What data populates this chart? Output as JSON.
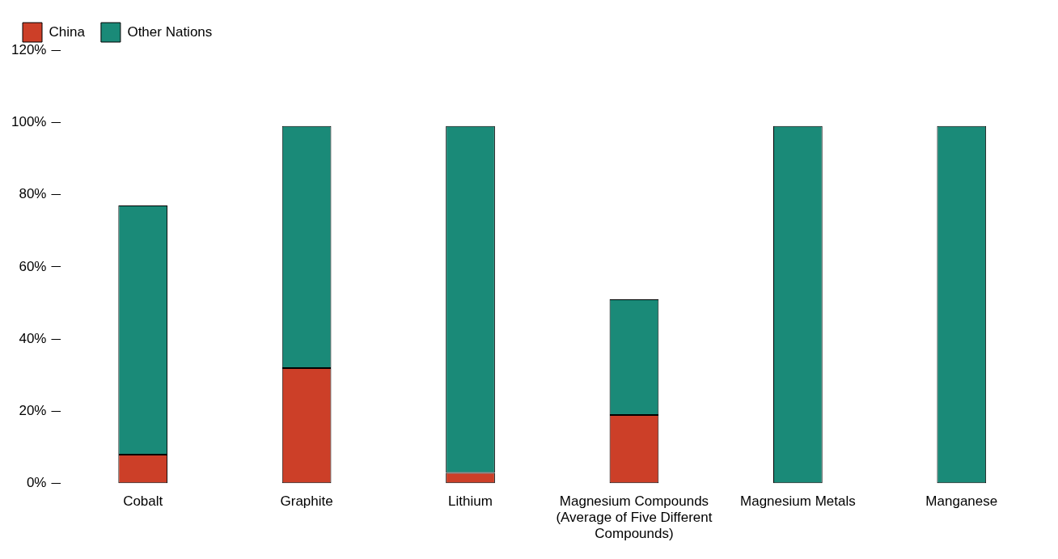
{
  "chart_data": {
    "type": "bar",
    "stacked": true,
    "categories": [
      "Cobalt",
      "Graphite",
      "Lithium",
      "Magnesium Compounds (Average of Five Different Compounds)",
      "Magnesium Metals",
      "Manganese"
    ],
    "series": [
      {
        "name": "China",
        "color": "#cc3f28",
        "values": [
          8,
          32,
          3,
          19,
          0,
          0
        ]
      },
      {
        "name": "Other Nations",
        "color": "#1a8a78",
        "values": [
          69,
          67,
          96,
          32,
          99,
          99
        ]
      }
    ],
    "ylim": [
      0,
      120
    ],
    "yticks": [
      {
        "value": 0,
        "label": "0%"
      },
      {
        "value": 20,
        "label": "20%"
      },
      {
        "value": 40,
        "label": "40%"
      },
      {
        "value": 60,
        "label": "60%"
      },
      {
        "value": 80,
        "label": "80%"
      },
      {
        "value": 100,
        "label": "100%"
      },
      {
        "value": 120,
        "label": "120%"
      }
    ],
    "grid": false,
    "legend": "top left"
  }
}
